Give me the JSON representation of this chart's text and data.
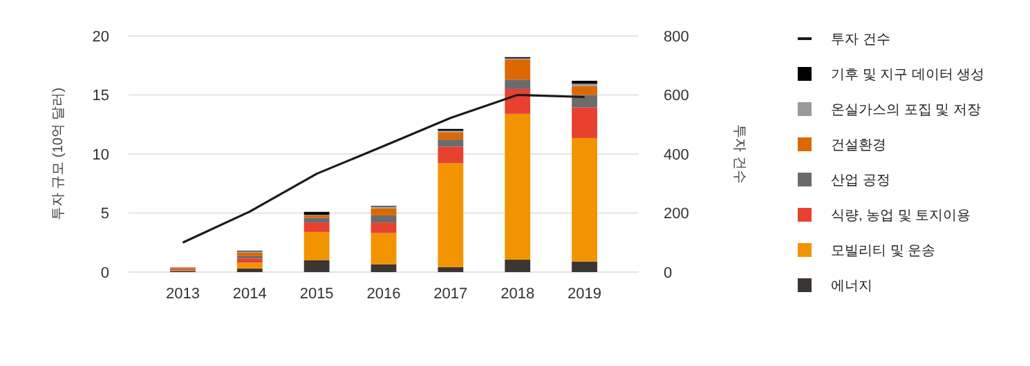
{
  "chart_data": {
    "type": "bar",
    "stacked": true,
    "categories": [
      "2013",
      "2014",
      "2015",
      "2016",
      "2017",
      "2018",
      "2019"
    ],
    "ylabel": "투자 규모 (10억 달러)",
    "y2label": "투자 건수",
    "ylim": [
      0,
      20
    ],
    "yticks": [
      0,
      5,
      10,
      15,
      20
    ],
    "y2lim": [
      0,
      800
    ],
    "y2ticks": [
      0,
      200,
      400,
      600,
      800
    ],
    "grid": "y",
    "legend": "right",
    "series": [
      {
        "name": "에너지",
        "color": "#3a3634",
        "values": [
          0.1,
          0.3,
          1.0,
          0.65,
          0.42,
          1.05,
          0.9
        ]
      },
      {
        "name": "모빌리티 및 운송",
        "color": "#f29400",
        "values": [
          0.05,
          0.5,
          2.4,
          2.65,
          8.8,
          12.35,
          10.45
        ]
      },
      {
        "name": "식량, 농업 및 토지이용",
        "color": "#e8412f",
        "values": [
          0.1,
          0.35,
          0.8,
          0.9,
          1.4,
          2.1,
          2.6
        ]
      },
      {
        "name": "산업 공정",
        "color": "#6b6b6b",
        "values": [
          0.05,
          0.2,
          0.4,
          0.6,
          0.6,
          0.8,
          1.05
        ]
      },
      {
        "name": "건설환경",
        "color": "#dc6900",
        "values": [
          0.1,
          0.3,
          0.2,
          0.6,
          0.6,
          1.7,
          0.75
        ]
      },
      {
        "name": "온실가스의 포집 및 저장",
        "color": "#9a9a9a",
        "values": [
          0,
          0.1,
          0.05,
          0.15,
          0.15,
          0.1,
          0.2
        ]
      },
      {
        "name": "기후 및 지구 데이터 생성",
        "color": "#000000",
        "values": [
          0,
          0.05,
          0.25,
          0.05,
          0.15,
          0.1,
          0.25
        ]
      },
      {
        "name": "투자 건수",
        "type": "line",
        "axis": "y2",
        "color": "#1a1a1a",
        "values": [
          100,
          205,
          333,
          427,
          522,
          600,
          593
        ]
      }
    ]
  }
}
